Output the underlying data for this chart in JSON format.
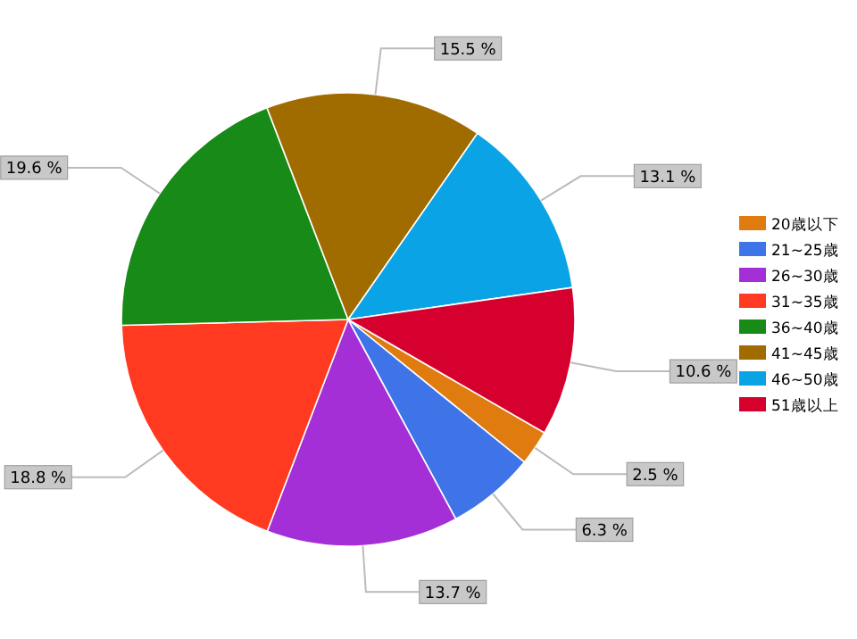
{
  "chart_data": {
    "type": "pie",
    "categories": [
      "20歳以下",
      "21~25歳",
      "26~30歳",
      "31~35歳",
      "36~40歳",
      "41~45歳",
      "46~50歳",
      "51歳以上"
    ],
    "values": [
      2.5,
      6.3,
      13.7,
      18.8,
      19.6,
      15.5,
      13.1,
      10.6
    ],
    "value_labels": [
      "2.5 %",
      "6.3 %",
      "13.7 %",
      "18.8 %",
      "19.6 %",
      "15.5 %",
      "13.1 %",
      "10.6 %"
    ],
    "colors": [
      "#e07b10",
      "#3f74e8",
      "#a52fd6",
      "#ff3a20",
      "#178a17",
      "#a06c00",
      "#0aa3e6",
      "#d6002e"
    ],
    "legend": "right"
  }
}
